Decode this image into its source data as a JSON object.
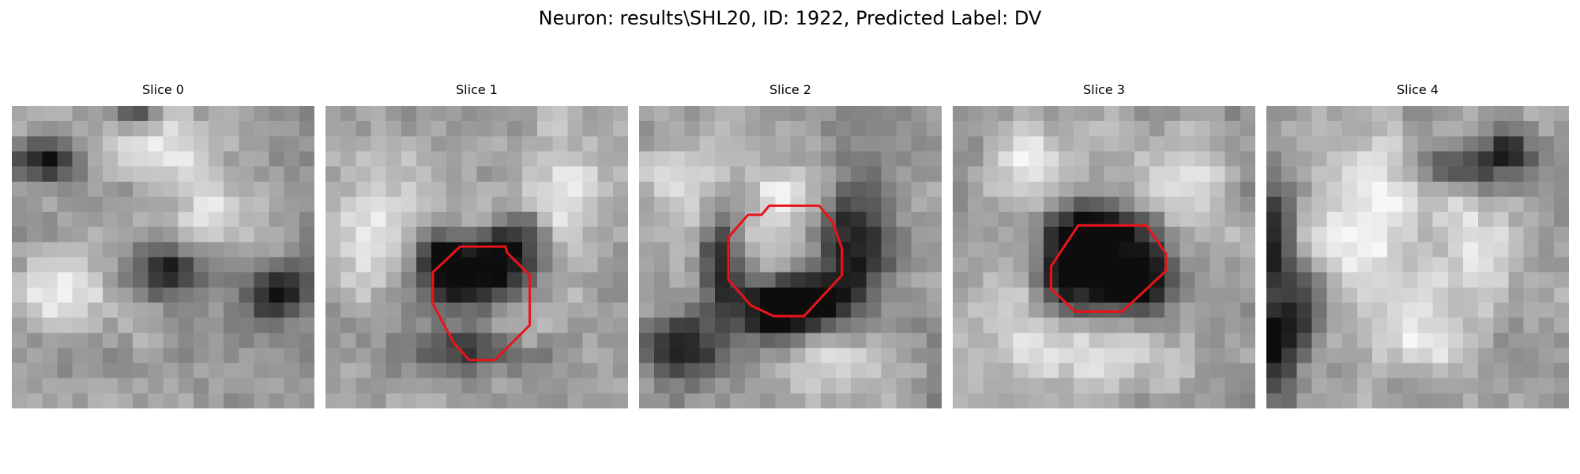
{
  "figure": {
    "title": "Neuron: results\\SHL20, ID: 1922, Predicted Label: DV",
    "contour_color": "#e8141a",
    "panels": [
      {
        "title": "Slice 0",
        "has_contour": false,
        "dark_spots": [
          [
            2,
            3.6,
            2.2,
            1.4
          ],
          [
            10.7,
            10.8,
            2.4,
            1.6
          ],
          [
            17.8,
            12.4,
            2.5,
            1.8
          ],
          [
            8.3,
            0.8,
            1.5,
            0.7
          ]
        ],
        "bright_spots": [
          [
            9.6,
            2.8,
            3.2,
            2
          ],
          [
            3.4,
            12,
            3,
            2.5
          ],
          [
            13.5,
            7,
            3,
            2.5
          ]
        ]
      },
      {
        "title": "Slice 1",
        "has_contour": true,
        "dark_spots": [
          [
            9.9,
            11.5,
            3.8,
            2.6
          ],
          [
            12.4,
            9,
            2.2,
            2.2
          ],
          [
            8,
            10,
            2,
            2.5
          ],
          [
            10,
            16,
            4,
            1.5
          ]
        ],
        "bright_spots": [
          [
            9.5,
            7.8,
            2.2,
            1.6
          ],
          [
            3,
            8,
            3.5,
            4
          ],
          [
            15.5,
            6,
            3,
            4
          ],
          [
            11.5,
            14.8,
            3.5,
            2
          ]
        ]
      },
      {
        "title": "Slice 2",
        "has_contour": true,
        "dark_spots": [
          [
            14.2,
            9,
            2.5,
            4
          ],
          [
            11.3,
            13,
            3.5,
            2.4
          ],
          [
            9,
            13.5,
            2.5,
            2
          ],
          [
            5.5,
            10,
            1.5,
            3
          ],
          [
            3,
            16,
            3,
            2
          ]
        ],
        "bright_spots": [
          [
            9,
            9,
            2.5,
            2.5
          ],
          [
            10,
            6,
            2,
            1.5
          ],
          [
            13,
            17,
            3,
            2.5
          ],
          [
            3,
            5,
            2.5,
            3
          ]
        ]
      },
      {
        "title": "Slice 3",
        "has_contour": true,
        "dark_spots": [
          [
            10,
            11,
            4,
            3
          ],
          [
            7.5,
            10.5,
            2,
            2.5
          ],
          [
            12.5,
            11.5,
            2,
            2
          ],
          [
            10,
            8,
            3,
            1.5
          ]
        ],
        "bright_spots": [
          [
            4,
            13,
            3,
            4
          ],
          [
            15,
            5,
            3,
            3
          ],
          [
            10,
            16.5,
            4,
            2
          ],
          [
            5,
            4,
            2.5,
            2.5
          ]
        ]
      },
      {
        "title": "Slice 4",
        "has_contour": false,
        "dark_spots": [
          [
            0.5,
            9,
            1.2,
            3.5
          ],
          [
            2.5,
            13.5,
            1.5,
            2.5
          ],
          [
            16,
            3,
            1.5,
            1.5
          ],
          [
            12,
            4,
            3,
            1.5
          ],
          [
            0.5,
            16,
            1.5,
            3
          ]
        ],
        "bright_spots": [
          [
            10.5,
            5,
            3.5,
            3
          ],
          [
            6,
            9,
            3,
            6
          ],
          [
            14,
            10,
            3,
            3
          ],
          [
            10.5,
            15,
            3,
            3
          ]
        ]
      }
    ]
  }
}
